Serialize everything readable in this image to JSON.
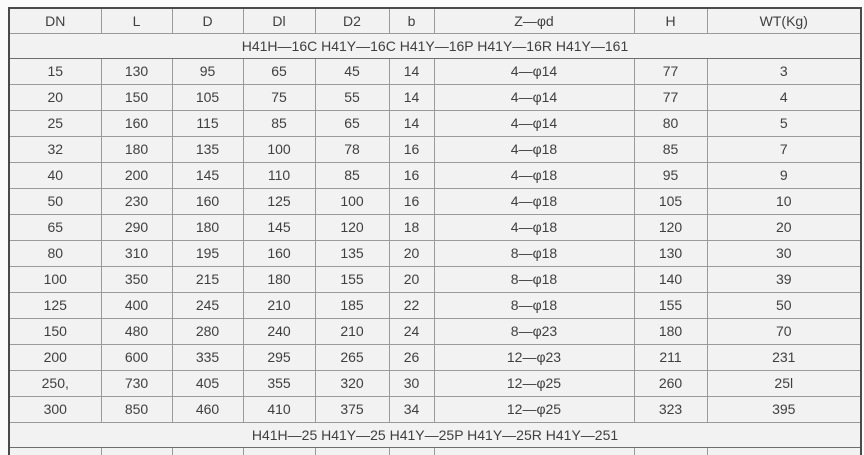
{
  "table": {
    "columns": [
      "DN",
      "L",
      "D",
      "Dl",
      "D2",
      "b",
      "Z—φd",
      "H",
      "WT(Kg)"
    ],
    "group_headers": {
      "first": "H41H—16C H41Y—16C H41Y—16P H41Y—16R H41Y—161",
      "second": "H41H—25 H41Y—25 H41Y—25P H41Y—25R H41Y—251"
    },
    "rows": [
      [
        "15",
        "130",
        "95",
        "65",
        "45",
        "14",
        "4—φ14",
        "77",
        "3"
      ],
      [
        "20",
        "150",
        "105",
        "75",
        "55",
        "14",
        "4—φ14",
        "77",
        "4"
      ],
      [
        "25",
        "160",
        "115",
        "85",
        "65",
        "14",
        "4—φ14",
        "80",
        "5"
      ],
      [
        "32",
        "180",
        "135",
        "100",
        "78",
        "16",
        "4—φ18",
        "85",
        "7"
      ],
      [
        "40",
        "200",
        "145",
        "110",
        "85",
        "16",
        "4—φ18",
        "95",
        "9"
      ],
      [
        "50",
        "230",
        "160",
        "125",
        "100",
        "16",
        "4—φ18",
        "105",
        "10"
      ],
      [
        "65",
        "290",
        "180",
        "145",
        "120",
        "18",
        "4—φ18",
        "120",
        "20"
      ],
      [
        "80",
        "310",
        "195",
        "160",
        "135",
        "20",
        "8—φ18",
        "130",
        "30"
      ],
      [
        "100",
        "350",
        "215",
        "180",
        "155",
        "20",
        "8—φ18",
        "140",
        "39"
      ],
      [
        "125",
        "400",
        "245",
        "210",
        "185",
        "22",
        "8—φ18",
        "155",
        "50"
      ],
      [
        "150",
        "480",
        "280",
        "240",
        "210",
        "24",
        "8—φ23",
        "180",
        "70"
      ],
      [
        "200",
        "600",
        "335",
        "295",
        "265",
        "26",
        "12—φ23",
        "211",
        "231"
      ],
      [
        "250,",
        "730",
        "405",
        "355",
        "320",
        "30",
        "12—φ25",
        "260",
        "25l"
      ],
      [
        "300",
        "850",
        "460",
        "410",
        "375",
        "34",
        "12—φ25",
        "323",
        "395"
      ]
    ]
  },
  "colors": {
    "cell_background": "#f2f2f2",
    "outer_border": "#4a4a4a",
    "inner_border": "#9a9a9a",
    "text": "#3f3f3f"
  }
}
